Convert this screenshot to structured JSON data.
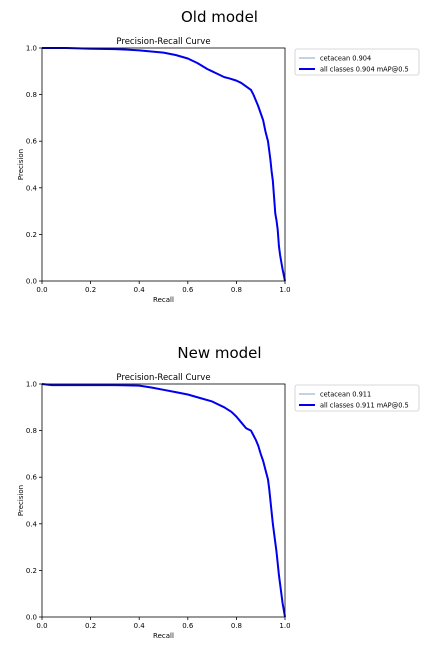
{
  "chart_data": [
    {
      "type": "line",
      "panel_title": "Old model",
      "title": "Precision-Recall Curve",
      "xlabel": "Recall",
      "ylabel": "Precision",
      "xlim": [
        0,
        1
      ],
      "ylim": [
        0,
        1
      ],
      "xticks": [
        "0.0",
        "0.2",
        "0.4",
        "0.6",
        "0.8",
        "1.0"
      ],
      "yticks": [
        "0.0",
        "0.2",
        "0.4",
        "0.6",
        "0.8",
        "1.0"
      ],
      "grid": false,
      "legend_position": "outside-right",
      "series": [
        {
          "name": "cetacean 0.904",
          "color": "#6a8fbf",
          "values": [
            [
              0.0,
              1.0
            ],
            [
              0.1,
              1.0
            ],
            [
              0.2,
              0.997
            ],
            [
              0.3,
              0.995
            ],
            [
              0.35,
              0.993
            ],
            [
              0.4,
              0.99
            ],
            [
              0.45,
              0.985
            ],
            [
              0.5,
              0.98
            ],
            [
              0.55,
              0.97
            ],
            [
              0.6,
              0.955
            ],
            [
              0.64,
              0.935
            ],
            [
              0.68,
              0.91
            ],
            [
              0.7,
              0.9
            ],
            [
              0.72,
              0.89
            ],
            [
              0.75,
              0.875
            ],
            [
              0.77,
              0.87
            ],
            [
              0.8,
              0.86
            ],
            [
              0.82,
              0.85
            ],
            [
              0.84,
              0.835
            ],
            [
              0.86,
              0.82
            ],
            [
              0.87,
              0.8
            ],
            [
              0.88,
              0.775
            ],
            [
              0.89,
              0.75
            ],
            [
              0.9,
              0.72
            ],
            [
              0.91,
              0.69
            ],
            [
              0.92,
              0.64
            ],
            [
              0.93,
              0.6
            ],
            [
              0.935,
              0.56
            ],
            [
              0.94,
              0.52
            ],
            [
              0.945,
              0.47
            ],
            [
              0.95,
              0.43
            ],
            [
              0.955,
              0.36
            ],
            [
              0.96,
              0.29
            ],
            [
              0.965,
              0.26
            ],
            [
              0.97,
              0.22
            ],
            [
              0.975,
              0.15
            ],
            [
              0.98,
              0.11
            ],
            [
              0.99,
              0.05
            ],
            [
              1.0,
              0.0
            ]
          ]
        },
        {
          "name": "all classes 0.904 mAP@0.5",
          "color": "#0000ee",
          "values": [
            [
              0.0,
              1.0
            ],
            [
              0.1,
              1.0
            ],
            [
              0.2,
              0.997
            ],
            [
              0.3,
              0.995
            ],
            [
              0.35,
              0.993
            ],
            [
              0.4,
              0.99
            ],
            [
              0.45,
              0.985
            ],
            [
              0.5,
              0.98
            ],
            [
              0.55,
              0.97
            ],
            [
              0.6,
              0.955
            ],
            [
              0.64,
              0.935
            ],
            [
              0.68,
              0.91
            ],
            [
              0.7,
              0.9
            ],
            [
              0.72,
              0.89
            ],
            [
              0.75,
              0.875
            ],
            [
              0.77,
              0.87
            ],
            [
              0.8,
              0.86
            ],
            [
              0.82,
              0.85
            ],
            [
              0.84,
              0.835
            ],
            [
              0.86,
              0.82
            ],
            [
              0.87,
              0.8
            ],
            [
              0.88,
              0.775
            ],
            [
              0.89,
              0.75
            ],
            [
              0.9,
              0.72
            ],
            [
              0.91,
              0.69
            ],
            [
              0.92,
              0.64
            ],
            [
              0.93,
              0.6
            ],
            [
              0.935,
              0.56
            ],
            [
              0.94,
              0.52
            ],
            [
              0.945,
              0.47
            ],
            [
              0.95,
              0.43
            ],
            [
              0.955,
              0.36
            ],
            [
              0.96,
              0.29
            ],
            [
              0.965,
              0.26
            ],
            [
              0.97,
              0.22
            ],
            [
              0.975,
              0.15
            ],
            [
              0.98,
              0.11
            ],
            [
              0.99,
              0.05
            ],
            [
              1.0,
              0.0
            ]
          ]
        }
      ]
    },
    {
      "type": "line",
      "panel_title": "New model",
      "title": "Precision-Recall Curve",
      "xlabel": "Recall",
      "ylabel": "Precision",
      "xlim": [
        0,
        1
      ],
      "ylim": [
        0,
        1
      ],
      "xticks": [
        "0.0",
        "0.2",
        "0.4",
        "0.6",
        "0.8",
        "1.0"
      ],
      "yticks": [
        "0.0",
        "0.2",
        "0.4",
        "0.6",
        "0.8",
        "1.0"
      ],
      "grid": false,
      "legend_position": "outside-right",
      "series": [
        {
          "name": "cetacean 0.911",
          "color": "#6a8fbf",
          "values": [
            [
              0.0,
              1.0
            ],
            [
              0.04,
              0.995
            ],
            [
              0.1,
              0.995
            ],
            [
              0.2,
              0.995
            ],
            [
              0.3,
              0.995
            ],
            [
              0.4,
              0.993
            ],
            [
              0.45,
              0.985
            ],
            [
              0.5,
              0.975
            ],
            [
              0.55,
              0.965
            ],
            [
              0.6,
              0.955
            ],
            [
              0.65,
              0.94
            ],
            [
              0.7,
              0.925
            ],
            [
              0.75,
              0.9
            ],
            [
              0.78,
              0.88
            ],
            [
              0.8,
              0.86
            ],
            [
              0.82,
              0.835
            ],
            [
              0.84,
              0.81
            ],
            [
              0.86,
              0.8
            ],
            [
              0.87,
              0.78
            ],
            [
              0.88,
              0.76
            ],
            [
              0.89,
              0.735
            ],
            [
              0.9,
              0.7
            ],
            [
              0.91,
              0.67
            ],
            [
              0.92,
              0.63
            ],
            [
              0.93,
              0.59
            ],
            [
              0.935,
              0.55
            ],
            [
              0.94,
              0.5
            ],
            [
              0.945,
              0.45
            ],
            [
              0.95,
              0.4
            ],
            [
              0.955,
              0.36
            ],
            [
              0.96,
              0.32
            ],
            [
              0.965,
              0.28
            ],
            [
              0.97,
              0.23
            ],
            [
              0.975,
              0.18
            ],
            [
              0.98,
              0.14
            ],
            [
              0.985,
              0.1
            ],
            [
              0.99,
              0.06
            ],
            [
              1.0,
              0.0
            ]
          ]
        },
        {
          "name": "all classes 0.911 mAP@0.5",
          "color": "#0000ee",
          "values": [
            [
              0.0,
              1.0
            ],
            [
              0.04,
              0.995
            ],
            [
              0.1,
              0.995
            ],
            [
              0.2,
              0.995
            ],
            [
              0.3,
              0.995
            ],
            [
              0.4,
              0.993
            ],
            [
              0.45,
              0.985
            ],
            [
              0.5,
              0.975
            ],
            [
              0.55,
              0.965
            ],
            [
              0.6,
              0.955
            ],
            [
              0.65,
              0.94
            ],
            [
              0.7,
              0.925
            ],
            [
              0.75,
              0.9
            ],
            [
              0.78,
              0.88
            ],
            [
              0.8,
              0.86
            ],
            [
              0.82,
              0.835
            ],
            [
              0.84,
              0.81
            ],
            [
              0.86,
              0.8
            ],
            [
              0.87,
              0.78
            ],
            [
              0.88,
              0.76
            ],
            [
              0.89,
              0.735
            ],
            [
              0.9,
              0.7
            ],
            [
              0.91,
              0.67
            ],
            [
              0.92,
              0.63
            ],
            [
              0.93,
              0.59
            ],
            [
              0.935,
              0.55
            ],
            [
              0.94,
              0.5
            ],
            [
              0.945,
              0.45
            ],
            [
              0.95,
              0.4
            ],
            [
              0.955,
              0.36
            ],
            [
              0.96,
              0.32
            ],
            [
              0.965,
              0.28
            ],
            [
              0.97,
              0.23
            ],
            [
              0.975,
              0.18
            ],
            [
              0.98,
              0.14
            ],
            [
              0.985,
              0.1
            ],
            [
              0.99,
              0.06
            ],
            [
              1.0,
              0.0
            ]
          ]
        }
      ]
    }
  ]
}
